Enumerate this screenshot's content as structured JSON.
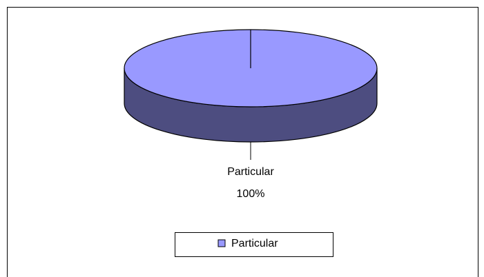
{
  "chart_data": {
    "type": "pie",
    "categories": [
      "Particular"
    ],
    "values": [
      100
    ],
    "value_labels": [
      "100%"
    ],
    "colors": [
      "#9999ff"
    ],
    "legend": "bottom"
  }
}
